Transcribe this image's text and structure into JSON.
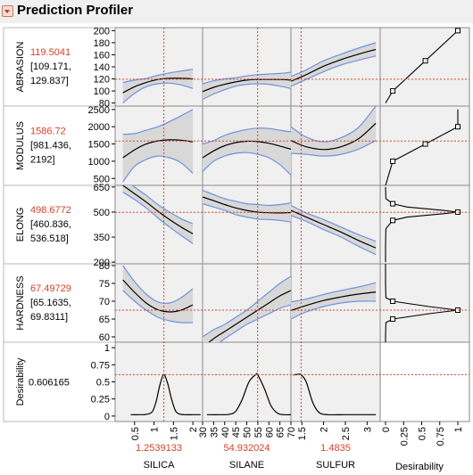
{
  "title": "Prediction Profiler",
  "chart_data": {
    "type": "line",
    "factors": [
      {
        "name": "SILICA",
        "current": "1.2539133",
        "range": [
          0,
          2.25
        ],
        "ticks": [
          "0.5",
          "1",
          "1.5",
          "2"
        ]
      },
      {
        "name": "SILANE",
        "current": "54.932024",
        "range": [
          30,
          70
        ],
        "ticks": [
          "30",
          "35",
          "40",
          "45",
          "50",
          "55",
          "60",
          "65",
          "70"
        ]
      },
      {
        "name": "SULFUR",
        "current": "1.4835",
        "range": [
          1.25,
          3.3
        ],
        "ticks": [
          "1.5",
          "2",
          "2.5",
          "3"
        ]
      }
    ],
    "desirability_axis": {
      "label": "Desirability",
      "ticks": [
        "0",
        "0.25",
        "0.5",
        "0.75",
        "1"
      ]
    },
    "responses": [
      {
        "name": "ABRASION",
        "value": "119.5041",
        "ci_low": "[109.171,",
        "ci_high": "129.837]",
        "ylim": [
          75,
          205
        ],
        "ticks": [
          "80",
          "100",
          "120",
          "140",
          "160",
          "180",
          "200"
        ],
        "curves": [
          {
            "x": [
              0.2,
              0.5,
              0.8,
              1.1,
              1.4,
              1.7,
              2.0
            ],
            "y": [
              97,
              107,
              114,
              119,
              121,
              121,
              120
            ],
            "lo": [
              80,
              96,
              107,
              112,
              113,
              110,
              104
            ],
            "hi": [
              114,
              118,
              121,
              126,
              130,
              133,
              136
            ]
          },
          {
            "x": [
              30,
              35,
              40,
              45,
              50,
              55,
              60,
              65,
              70
            ],
            "y": [
              99,
              106,
              111,
              115,
              118,
              119,
              119,
              119,
              118
            ],
            "lo": [
              86,
              95,
              102,
              108,
              111,
              112,
              111,
              108,
              104
            ],
            "hi": [
              112,
              117,
              120,
              122,
              125,
              127,
              128,
              129,
              131
            ]
          },
          {
            "x": [
              1.25,
              1.6,
              2.0,
              2.4,
              2.8,
              3.2
            ],
            "y": [
              116,
              127,
              141,
              152,
              161,
              169
            ],
            "lo": [
              108,
              119,
              132,
              143,
              151,
              158
            ],
            "hi": [
              124,
              135,
              150,
              161,
              171,
              180
            ]
          }
        ],
        "desir": {
          "vals": [
            80,
            100,
            150,
            200
          ],
          "d": [
            0,
            0.1,
            0.55,
            1
          ],
          "markers": [
            [
              100,
              0.1
            ],
            [
              150,
              0.55
            ],
            [
              200,
              1
            ]
          ]
        }
      },
      {
        "name": "MODULUS",
        "value": "1586.72",
        "ci_low": "[981.436,",
        "ci_high": "2192]",
        "ylim": [
          300,
          2600
        ],
        "ticks": [
          "500",
          "1000",
          "1500",
          "2000",
          "2500"
        ],
        "curves": [
          {
            "x": [
              0.2,
              0.5,
              0.8,
              1.1,
              1.4,
              1.7,
              2.0
            ],
            "y": [
              1100,
              1330,
              1500,
              1590,
              1620,
              1610,
              1560
            ],
            "lo": [
              400,
              850,
              1050,
              1150,
              1100,
              950,
              650
            ],
            "hi": [
              1780,
              1800,
              1900,
              2000,
              2150,
              2320,
              2500
            ]
          },
          {
            "x": [
              30,
              35,
              40,
              45,
              50,
              55,
              60,
              65,
              70
            ],
            "y": [
              1100,
              1300,
              1450,
              1540,
              1580,
              1570,
              1520,
              1440,
              1350
            ],
            "lo": [
              700,
              1000,
              1150,
              1230,
              1250,
              1200,
              1100,
              900,
              600
            ],
            "hi": [
              1500,
              1600,
              1750,
              1850,
              1920,
              1960,
              1950,
              1900,
              1850
            ]
          },
          {
            "x": [
              1.25,
              1.6,
              2.0,
              2.4,
              2.8,
              3.2
            ],
            "y": [
              1600,
              1420,
              1340,
              1420,
              1650,
              2100
            ],
            "lo": [
              1230,
              1200,
              1150,
              1200,
              1350,
              1600
            ],
            "hi": [
              2000,
              1700,
              1560,
              1680,
              1980,
              2600
            ]
          }
        ],
        "desir": {
          "vals": [
            300,
            1000,
            1500,
            2000,
            2500
          ],
          "d": [
            0,
            0.1,
            0.55,
            1,
            1
          ],
          "markers": [
            [
              1000,
              0.1
            ],
            [
              1500,
              0.55
            ],
            [
              2000,
              1
            ]
          ]
        }
      },
      {
        "name": "ELONG",
        "value": "498.6772",
        "ci_low": "[460.836,",
        "ci_high": "536.518]",
        "ylim": [
          190,
          660
        ],
        "ticks": [
          "200",
          "350",
          "500",
          "650"
        ],
        "curves": [
          {
            "x": [
              0.2,
              0.5,
              0.8,
              1.1,
              1.4,
              1.7,
              2.0
            ],
            "y": [
              660,
              610,
              560,
              505,
              455,
              410,
              370
            ],
            "lo": [
              620,
              575,
              525,
              465,
              410,
              360,
              310
            ],
            "hi": [
              700,
              650,
              600,
              545,
              500,
              460,
              430
            ]
          },
          {
            "x": [
              30,
              35,
              40,
              45,
              50,
              55,
              60,
              65,
              70
            ],
            "y": [
              590,
              568,
              545,
              525,
              510,
              500,
              496,
              495,
              497
            ],
            "lo": [
              550,
              530,
              510,
              485,
              470,
              458,
              455,
              450,
              440
            ],
            "hi": [
              630,
              605,
              580,
              565,
              550,
              545,
              540,
              545,
              555
            ]
          },
          {
            "x": [
              1.25,
              1.6,
              2.0,
              2.4,
              2.8,
              3.2
            ],
            "y": [
              510,
              470,
              425,
              380,
              330,
              285
            ],
            "lo": [
              480,
              445,
              395,
              350,
              295,
              245
            ],
            "hi": [
              540,
              495,
              455,
              410,
              365,
              325
            ]
          }
        ],
        "desir": {
          "vals": [
            200,
            300,
            400,
            450,
            470,
            490,
            500,
            510,
            530,
            550,
            580,
            650
          ],
          "d": [
            0,
            0,
            0.005,
            0.1,
            0.3,
            0.8,
            1,
            0.8,
            0.3,
            0.1,
            0.005,
            0
          ],
          "markers": [
            [
              450,
              0.1
            ],
            [
              500,
              1
            ],
            [
              550,
              0.1
            ]
          ]
        }
      },
      {
        "name": "HARDNESS",
        "value": "67.49729",
        "ci_low": "[65.1635,",
        "ci_high": "69.8311]",
        "ylim": [
          58.5,
          80.5
        ],
        "ticks": [
          "60",
          "65",
          "70",
          "75",
          "80"
        ],
        "curves": [
          {
            "x": [
              0.2,
              0.5,
              0.8,
              1.1,
              1.4,
              1.7,
              2.0
            ],
            "y": [
              76,
              72.5,
              69.5,
              67.6,
              67,
              67.5,
              69
            ],
            "lo": [
              73,
              70,
              67.5,
              65.5,
              64.5,
              64,
              64
            ],
            "hi": [
              80,
              75.5,
              72,
              69.8,
              69.5,
              71,
              73.5
            ]
          },
          {
            "x": [
              30,
              35,
              40,
              45,
              50,
              55,
              60,
              65,
              70
            ],
            "y": [
              57,
              59.5,
              61.5,
              63.5,
              65.5,
              67.5,
              69.5,
              71.5,
              73
            ],
            "lo": [
              54,
              57,
              59.5,
              61.5,
              63.5,
              65,
              66.5,
              68,
              69
            ],
            "hi": [
              60,
              62,
              63.5,
              65.5,
              67.5,
              70,
              72.5,
              75,
              77
            ]
          },
          {
            "x": [
              1.25,
              1.6,
              2.0,
              2.4,
              2.8,
              3.2
            ],
            "y": [
              67.4,
              68.8,
              70.2,
              71.2,
              72,
              72.6
            ],
            "lo": [
              65,
              67,
              68.5,
              69.5,
              70,
              70
            ],
            "hi": [
              69.8,
              70.6,
              71.9,
              73,
              74,
              75.2
            ]
          }
        ],
        "desir": {
          "vals": [
            58.5,
            60,
            64,
            65,
            66.5,
            67.5,
            68.5,
            70,
            71,
            75,
            80.5
          ],
          "d": [
            0,
            0,
            0.005,
            0.1,
            0.6,
            1,
            0.6,
            0.1,
            0.005,
            0,
            0
          ],
          "markers": [
            [
              65,
              0.1
            ],
            [
              67.5,
              1
            ],
            [
              70,
              0.1
            ]
          ]
        }
      },
      {
        "name": "Desirability",
        "value": "0.606165",
        "ci_low": "",
        "ci_high": "",
        "ylim": [
          -0.08,
          1.08
        ],
        "ticks": [
          "0",
          "0.25",
          "0.5",
          "0.75",
          "1"
        ],
        "curves": [
          {
            "x": [
              0.4,
              0.6,
              0.8,
              0.95,
              1.05,
              1.15,
              1.25,
              1.35,
              1.45,
              1.55,
              1.65,
              1.8,
              2.0,
              2.2
            ],
            "y": [
              0.02,
              0.02,
              0.025,
              0.06,
              0.2,
              0.45,
              0.606,
              0.48,
              0.25,
              0.08,
              0.03,
              0.02,
              0.02,
              0.02
            ]
          },
          {
            "x": [
              32,
              38,
              42,
              45,
              48,
              51,
              54,
              55,
              58,
              61,
              64,
              67,
              70
            ],
            "y": [
              0.02,
              0.02,
              0.025,
              0.07,
              0.25,
              0.5,
              0.606,
              0.6,
              0.4,
              0.15,
              0.04,
              0.02,
              0.02
            ]
          },
          {
            "x": [
              1.3,
              1.4,
              1.48,
              1.6,
              1.75,
              1.9,
              2.1,
              2.5,
              3.0,
              3.2
            ],
            "y": [
              0.6,
              0.61,
              0.606,
              0.5,
              0.2,
              0.05,
              0.02,
              0.02,
              0.02,
              0.02
            ]
          }
        ]
      }
    ]
  }
}
